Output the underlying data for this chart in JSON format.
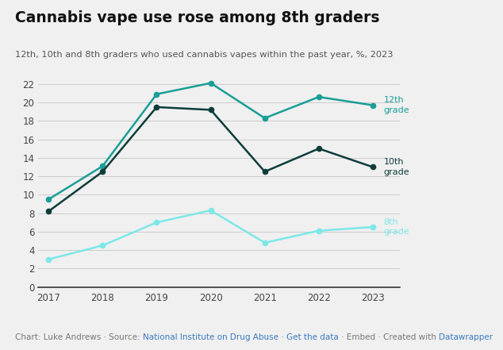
{
  "title": "Cannabis vape use rose among 8th graders",
  "subtitle": "12th, 10th and 8th graders who used cannabis vapes within the past year, %, 2023",
  "years": [
    2017,
    2018,
    2019,
    2020,
    2021,
    2022,
    2023
  ],
  "grade_12": [
    9.5,
    13.1,
    20.9,
    22.1,
    18.3,
    20.6,
    19.7
  ],
  "grade_10": [
    8.2,
    12.5,
    19.5,
    19.2,
    12.5,
    15.0,
    13.0
  ],
  "grade_8": [
    3.0,
    4.5,
    7.0,
    8.3,
    4.8,
    6.1,
    6.5
  ],
  "color_12": "#1a9e96",
  "color_10": "#0d3d3a",
  "color_8": "#7de8e8",
  "ylim": [
    0,
    22
  ],
  "yticks": [
    0,
    2,
    4,
    6,
    8,
    10,
    12,
    14,
    16,
    18,
    20,
    22
  ],
  "footer_color_link": "#3a7abf",
  "footer_color_gray": "#777777",
  "bg_color": "#f0f0f0",
  "label_12": "12th\ngrade",
  "label_10": "10th\ngrade",
  "label_8": "8th\ngrade"
}
